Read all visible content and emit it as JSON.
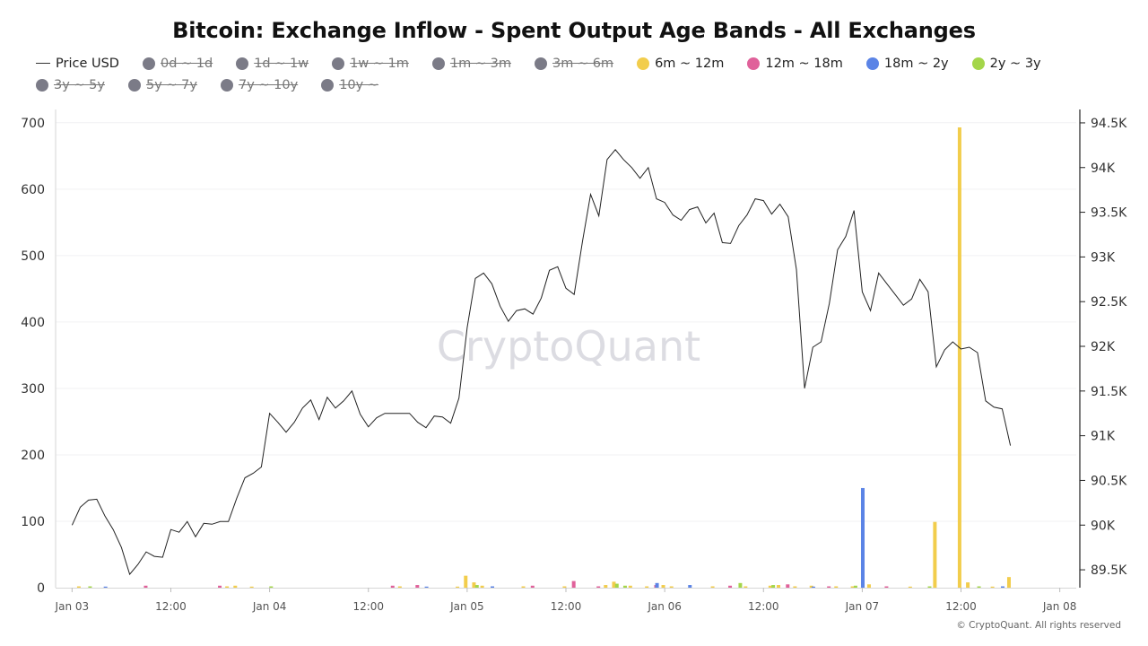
{
  "chart_data": {
    "type": "bar+line",
    "title": "Bitcoin: Exchange Inflow - Spent Output Age Bands - All Exchanges",
    "watermark": "CryptoQuant",
    "copyright": "© CryptoQuant. All rights reserved",
    "left_axis": {
      "ylim": [
        0,
        720
      ],
      "ticks": [
        "0",
        "100",
        "200",
        "300",
        "400",
        "500",
        "600",
        "700"
      ],
      "tick_values": [
        0,
        100,
        200,
        300,
        400,
        500,
        600,
        700
      ]
    },
    "right_axis": {
      "ylim": [
        89300,
        94650
      ],
      "ticks": [
        "89.5K",
        "90K",
        "90.5K",
        "91K",
        "91.5K",
        "92K",
        "92.5K",
        "93K",
        "93.5K",
        "94K",
        "94.5K"
      ],
      "tick_values": [
        89500,
        90000,
        90500,
        91000,
        91500,
        92000,
        92500,
        93000,
        93500,
        94000,
        94500
      ]
    },
    "x_axis": {
      "range_hours": [
        -2,
        122
      ],
      "ticks": [
        "Jan 03",
        "12:00",
        "Jan 04",
        "12:00",
        "Jan 05",
        "12:00",
        "Jan 06",
        "12:00",
        "Jan 07",
        "12:00",
        "Jan 08"
      ],
      "tick_hours": [
        0,
        12,
        24,
        36,
        48,
        60,
        72,
        84,
        96,
        108,
        120
      ]
    },
    "legend": [
      {
        "label": "Price USD",
        "kind": "line",
        "color": "#333333",
        "active": true
      },
      {
        "label": "0d ~ 1d",
        "kind": "dot",
        "color": "#7b7b87",
        "active": false
      },
      {
        "label": "1d ~ 1w",
        "kind": "dot",
        "color": "#7b7b87",
        "active": false
      },
      {
        "label": "1w ~ 1m",
        "kind": "dot",
        "color": "#7b7b87",
        "active": false
      },
      {
        "label": "1m ~ 3m",
        "kind": "dot",
        "color": "#7b7b87",
        "active": false
      },
      {
        "label": "3m ~ 6m",
        "kind": "dot",
        "color": "#7b7b87",
        "active": false
      },
      {
        "label": "6m ~ 12m",
        "kind": "dot",
        "color": "#f2cd4c",
        "active": true
      },
      {
        "label": "12m ~ 18m",
        "kind": "dot",
        "color": "#e0619a",
        "active": true
      },
      {
        "label": "18m ~ 2y",
        "kind": "dot",
        "color": "#5b84e6",
        "active": true
      },
      {
        "label": "2y ~ 3y",
        "kind": "dot",
        "color": "#a4d64a",
        "active": true
      },
      {
        "label": "3y ~ 5y",
        "kind": "dot",
        "color": "#7b7b87",
        "active": false
      },
      {
        "label": "5y ~ 7y",
        "kind": "dot",
        "color": "#7b7b87",
        "active": false
      },
      {
        "label": "7y ~ 10y",
        "kind": "dot",
        "color": "#7b7b87",
        "active": false
      },
      {
        "label": "10y ~",
        "kind": "dot",
        "color": "#7b7b87",
        "active": false
      }
    ],
    "price_series": {
      "name": "Price USD",
      "points": [
        [
          0,
          90000
        ],
        [
          1,
          90200
        ],
        [
          2,
          90280
        ],
        [
          3,
          90290
        ],
        [
          4,
          90100
        ],
        [
          5,
          89950
        ],
        [
          6,
          89750
        ],
        [
          7,
          89450
        ],
        [
          8,
          89560
        ],
        [
          9,
          89700
        ],
        [
          10,
          89650
        ],
        [
          11,
          89640
        ],
        [
          12,
          89950
        ],
        [
          13,
          89920
        ],
        [
          14,
          90040
        ],
        [
          15,
          89870
        ],
        [
          16,
          90020
        ],
        [
          17,
          90010
        ],
        [
          18,
          90040
        ],
        [
          19,
          90040
        ],
        [
          20,
          90300
        ],
        [
          21,
          90530
        ],
        [
          22,
          90580
        ],
        [
          23,
          90650
        ],
        [
          24,
          91250
        ],
        [
          25,
          91150
        ],
        [
          26,
          91040
        ],
        [
          27,
          91150
        ],
        [
          28,
          91310
        ],
        [
          29,
          91400
        ],
        [
          30,
          91180
        ],
        [
          31,
          91430
        ],
        [
          32,
          91310
        ],
        [
          33,
          91390
        ],
        [
          34,
          91500
        ],
        [
          35,
          91240
        ],
        [
          36,
          91100
        ],
        [
          37,
          91200
        ],
        [
          38,
          91250
        ],
        [
          39,
          91250
        ],
        [
          40,
          91250
        ],
        [
          41,
          91250
        ],
        [
          42,
          91150
        ],
        [
          43,
          91090
        ],
        [
          44,
          91220
        ],
        [
          45,
          91210
        ],
        [
          46,
          91140
        ],
        [
          47,
          91420
        ],
        [
          48,
          92210
        ],
        [
          49,
          92760
        ],
        [
          50,
          92820
        ],
        [
          51,
          92700
        ],
        [
          52,
          92450
        ],
        [
          53,
          92280
        ],
        [
          54,
          92400
        ],
        [
          55,
          92420
        ],
        [
          56,
          92360
        ],
        [
          57,
          92540
        ],
        [
          58,
          92850
        ],
        [
          59,
          92890
        ],
        [
          60,
          92650
        ],
        [
          61,
          92580
        ],
        [
          62,
          93170
        ],
        [
          63,
          93700
        ],
        [
          64,
          93460
        ],
        [
          65,
          94090
        ],
        [
          66,
          94200
        ],
        [
          67,
          94090
        ],
        [
          68,
          94000
        ],
        [
          69,
          93880
        ],
        [
          70,
          94000
        ],
        [
          71,
          93650
        ],
        [
          72,
          93610
        ],
        [
          73,
          93470
        ],
        [
          74,
          93410
        ],
        [
          75,
          93530
        ],
        [
          76,
          93560
        ],
        [
          77,
          93380
        ],
        [
          78,
          93490
        ],
        [
          79,
          93160
        ],
        [
          80,
          93150
        ],
        [
          81,
          93350
        ],
        [
          82,
          93470
        ],
        [
          83,
          93650
        ],
        [
          84,
          93630
        ],
        [
          85,
          93480
        ],
        [
          86,
          93590
        ],
        [
          87,
          93450
        ],
        [
          88,
          92860
        ],
        [
          89,
          91530
        ],
        [
          90,
          91990
        ],
        [
          91,
          92050
        ],
        [
          92,
          92480
        ],
        [
          93,
          93080
        ],
        [
          94,
          93230
        ],
        [
          95,
          93520
        ],
        [
          96,
          92610
        ],
        [
          97,
          92400
        ],
        [
          98,
          92820
        ],
        [
          99,
          92700
        ],
        [
          100,
          92580
        ],
        [
          101,
          92460
        ],
        [
          102,
          92530
        ],
        [
          103,
          92750
        ],
        [
          104,
          92610
        ],
        [
          105,
          91770
        ],
        [
          106,
          91960
        ],
        [
          107,
          92050
        ],
        [
          108,
          91970
        ],
        [
          109,
          91990
        ],
        [
          110,
          91930
        ],
        [
          111,
          91390
        ],
        [
          112,
          91320
        ],
        [
          113,
          91300
        ],
        [
          114,
          90890
        ]
      ]
    },
    "bar_series": [
      {
        "name": "6m ~ 12m",
        "color": "#f2cd4c",
        "points": [
          [
            1,
            2
          ],
          [
            19,
            2
          ],
          [
            20,
            3
          ],
          [
            22,
            1
          ],
          [
            40,
            2
          ],
          [
            47,
            1
          ],
          [
            48,
            18
          ],
          [
            49,
            8
          ],
          [
            50,
            3
          ],
          [
            55,
            2
          ],
          [
            60,
            2
          ],
          [
            65,
            4
          ],
          [
            66,
            9
          ],
          [
            68,
            3
          ],
          [
            70,
            2
          ],
          [
            72,
            4
          ],
          [
            73,
            2
          ],
          [
            78,
            2
          ],
          [
            82,
            2
          ],
          [
            85,
            3
          ],
          [
            86,
            4
          ],
          [
            88,
            2
          ],
          [
            90,
            3
          ],
          [
            93,
            2
          ],
          [
            95,
            2
          ],
          [
            97,
            5
          ],
          [
            102,
            1
          ],
          [
            105,
            99
          ],
          [
            108,
            693
          ],
          [
            109,
            8
          ],
          [
            112,
            1
          ],
          [
            114,
            16
          ]
        ]
      },
      {
        "name": "12m ~ 18m",
        "color": "#e0619a",
        "points": [
          [
            9,
            3
          ],
          [
            18,
            3
          ],
          [
            39,
            3
          ],
          [
            42,
            4
          ],
          [
            56,
            3
          ],
          [
            61,
            10
          ],
          [
            64,
            2
          ],
          [
            71,
            4
          ],
          [
            80,
            3
          ],
          [
            87,
            5
          ],
          [
            92,
            2
          ],
          [
            99,
            2
          ]
        ]
      },
      {
        "name": "18m ~ 2y",
        "color": "#5b84e6",
        "points": [
          [
            4,
            1
          ],
          [
            43,
            1
          ],
          [
            51,
            2
          ],
          [
            71,
            7
          ],
          [
            75,
            4
          ],
          [
            90,
            1
          ],
          [
            96,
            150
          ],
          [
            113,
            2
          ]
        ]
      },
      {
        "name": "2y ~ 3y",
        "color": "#a4d64a",
        "points": [
          [
            2,
            2
          ],
          [
            24,
            2
          ],
          [
            49,
            4
          ],
          [
            66,
            6
          ],
          [
            67,
            3
          ],
          [
            81,
            7
          ],
          [
            85,
            4
          ],
          [
            95,
            3
          ],
          [
            104,
            2
          ],
          [
            110,
            2
          ]
        ]
      }
    ]
  }
}
